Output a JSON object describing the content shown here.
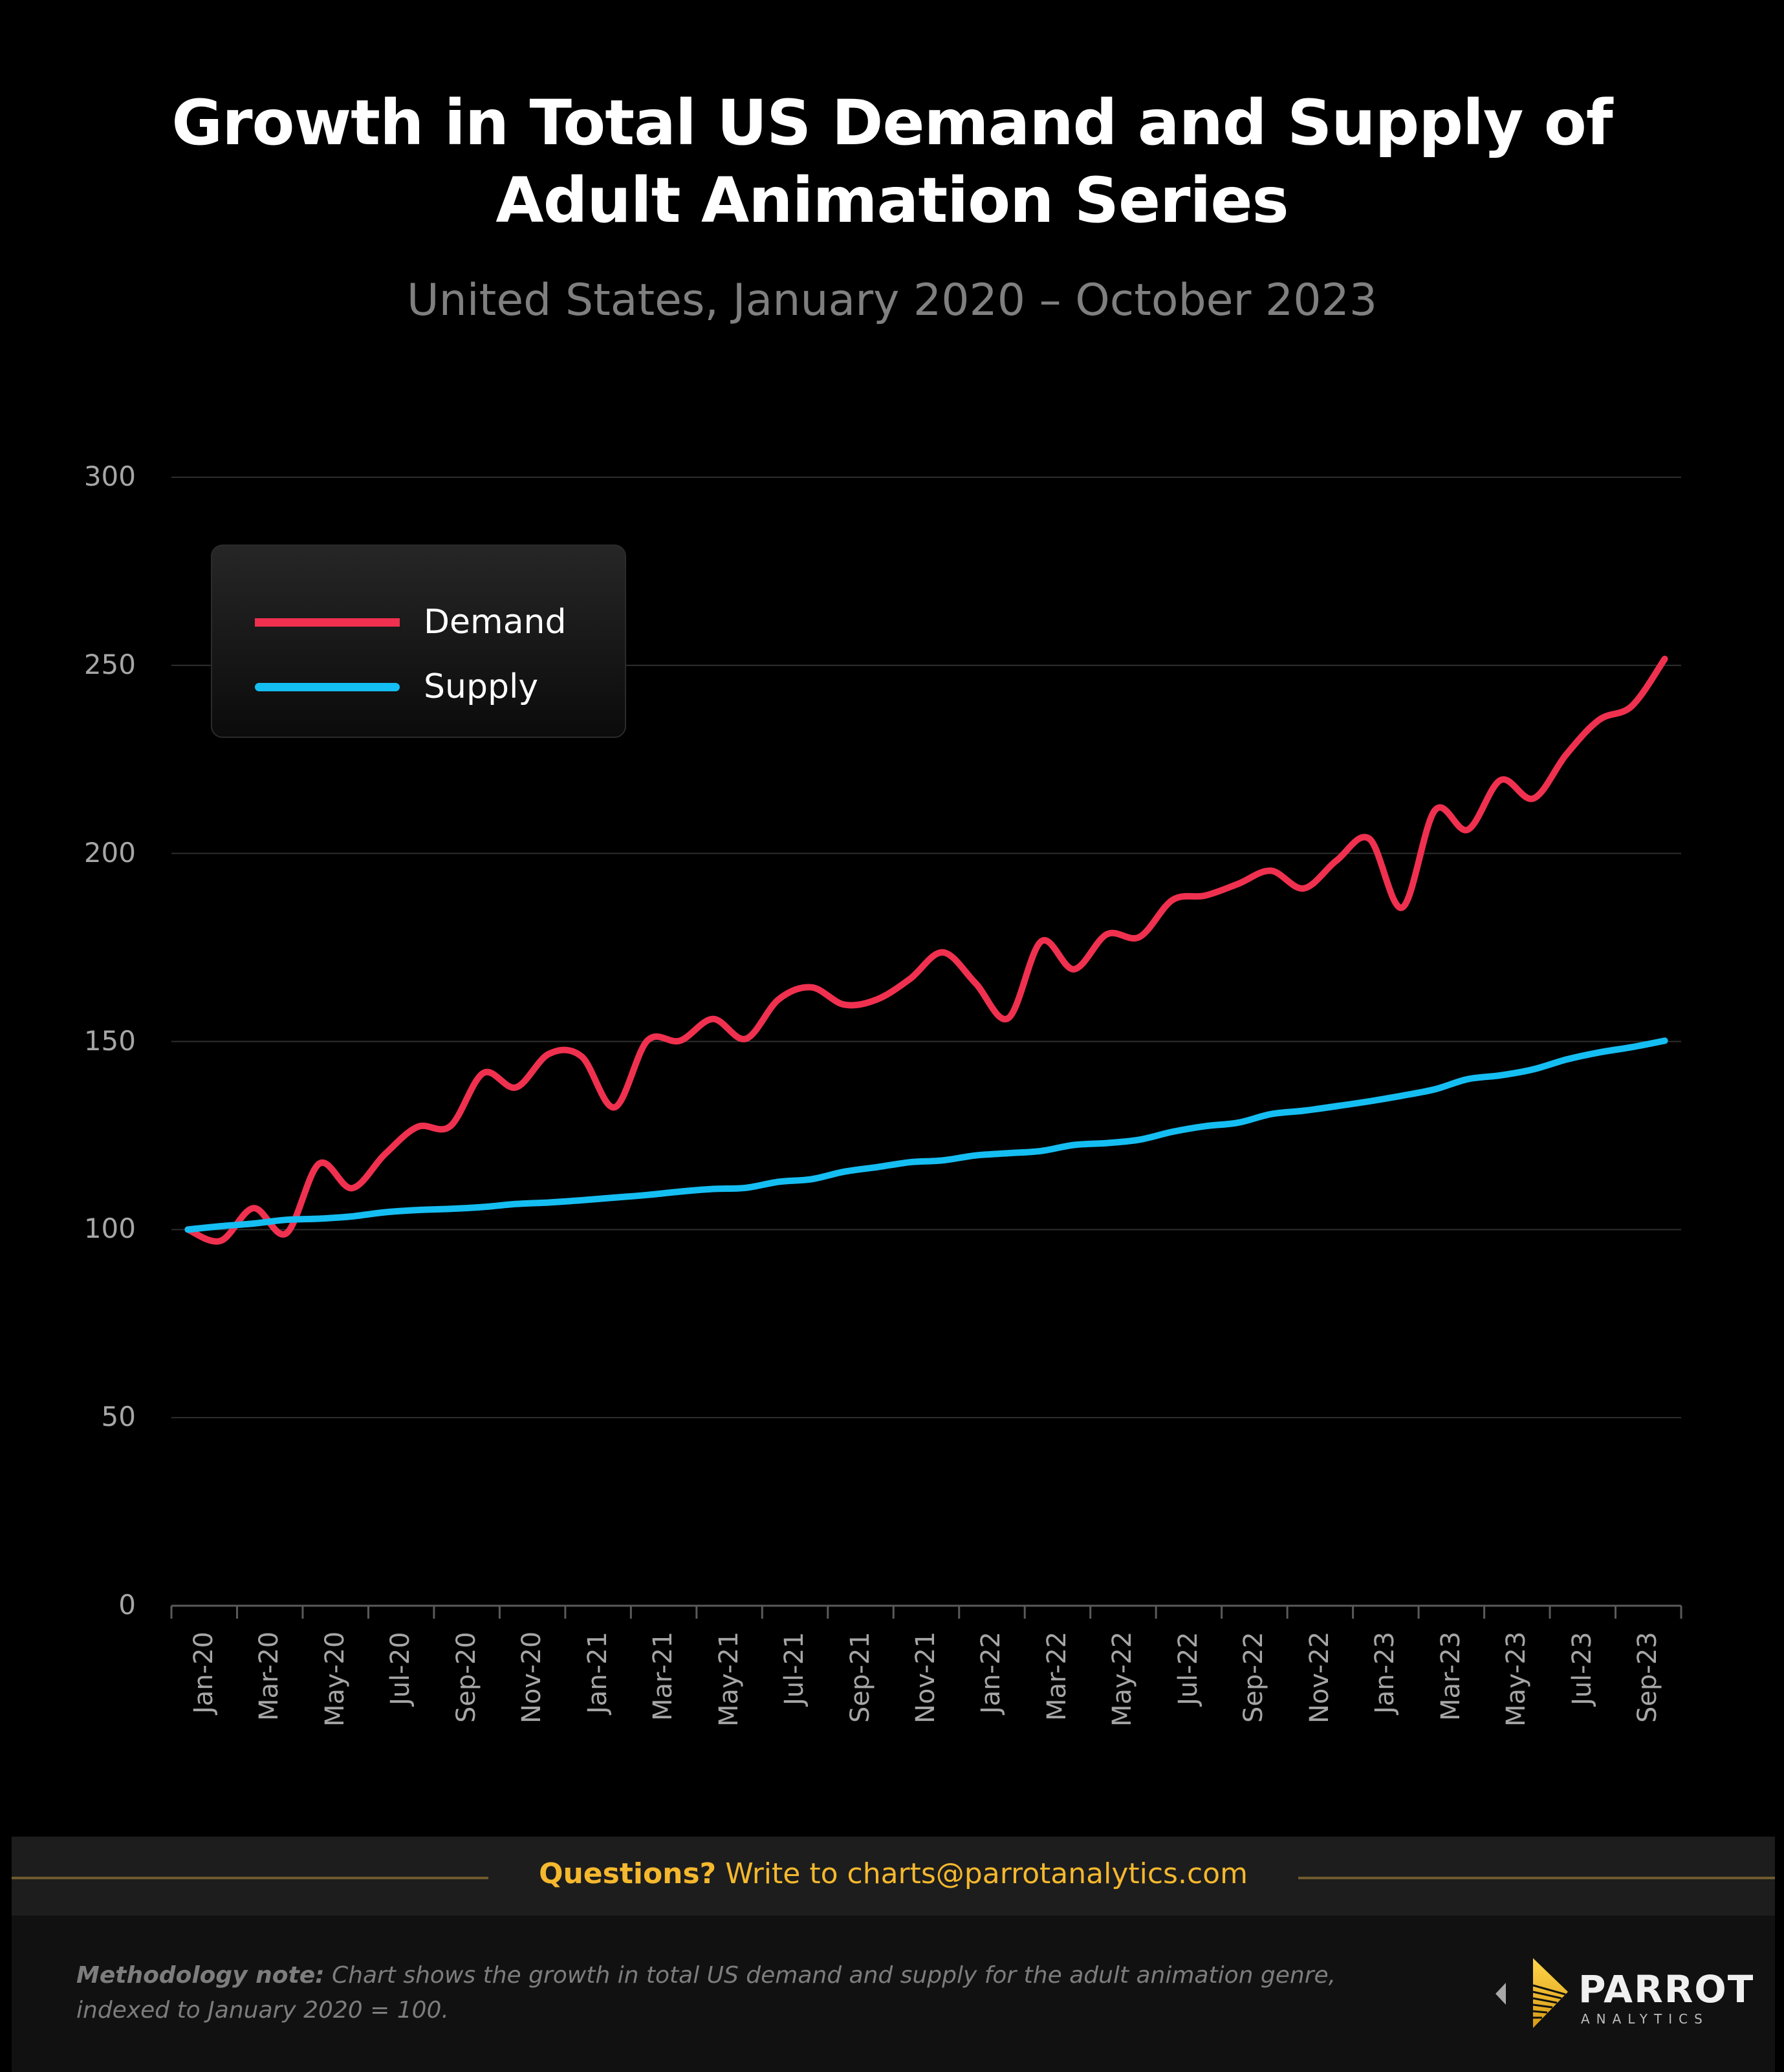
{
  "header": {
    "title_line1": "Growth in Total US Demand and Supply of",
    "title_line2": "Adult Animation Series",
    "subtitle": "United States, January 2020 – October 2023"
  },
  "legend": {
    "items": [
      {
        "label": "Demand",
        "color": "#F0304F"
      },
      {
        "label": "Supply",
        "color": "#15BEF2"
      }
    ]
  },
  "chart_data": {
    "type": "line",
    "title": "Growth in Total US Demand and Supply of Adult Animation Series",
    "subtitle": "United States, January 2020 – October 2023",
    "xlabel": "",
    "ylabel": "",
    "ylim": [
      0,
      300
    ],
    "yticks": [
      0,
      50,
      100,
      150,
      200,
      250,
      300
    ],
    "grid": true,
    "legend_position": "top-left",
    "x_tick_labels": [
      "Jan-20",
      "Mar-20",
      "May-20",
      "Jul-20",
      "Sep-20",
      "Nov-20",
      "Jan-21",
      "Mar-21",
      "May-21",
      "Jul-21",
      "Sep-21",
      "Nov-21",
      "Jan-22",
      "Mar-22",
      "May-22",
      "Jul-22",
      "Sep-22",
      "Nov-22",
      "Jan-23",
      "Mar-23",
      "May-23",
      "Jul-23",
      "Sep-23"
    ],
    "x": [
      "Jan-20",
      "Feb-20",
      "Mar-20",
      "Apr-20",
      "May-20",
      "Jun-20",
      "Jul-20",
      "Aug-20",
      "Sep-20",
      "Oct-20",
      "Nov-20",
      "Dec-20",
      "Jan-21",
      "Feb-21",
      "Mar-21",
      "Apr-21",
      "May-21",
      "Jun-21",
      "Jul-21",
      "Aug-21",
      "Sep-21",
      "Oct-21",
      "Nov-21",
      "Dec-21",
      "Jan-22",
      "Feb-22",
      "Mar-22",
      "Apr-22",
      "May-22",
      "Jun-22",
      "Jul-22",
      "Aug-22",
      "Sep-22",
      "Oct-22",
      "Nov-22",
      "Dec-22",
      "Jan-23",
      "Feb-23",
      "Mar-23",
      "Apr-23",
      "May-23",
      "Jun-23",
      "Jul-23",
      "Aug-23",
      "Sep-23",
      "Oct-23"
    ],
    "series": [
      {
        "name": "Demand",
        "color": "#F0304F",
        "values": [
          100,
          97,
          105.7,
          99,
          117.5,
          111,
          120,
          127.3,
          127.5,
          141.6,
          137.8,
          146.7,
          146,
          132.5,
          150.2,
          150.2,
          156,
          150.7,
          161.2,
          164.4,
          159.8,
          161.2,
          166.6,
          173.7,
          165.5,
          156.2,
          176.6,
          169.2,
          178.5,
          177.8,
          187.6,
          188.8,
          191.9,
          195.4,
          190.7,
          198.1,
          203.9,
          185.6,
          211.5,
          206.3,
          219.5,
          214.6,
          226.3,
          235.5,
          239.2,
          251.7
        ]
      },
      {
        "name": "Supply",
        "color": "#15BEF2",
        "values": [
          100,
          100.9,
          101.6,
          102.6,
          102.9,
          103.5,
          104.6,
          105.2,
          105.5,
          106,
          106.8,
          107.2,
          107.8,
          108.5,
          109.2,
          110.1,
          110.8,
          111.1,
          112.7,
          113.4,
          115.4,
          116.6,
          117.9,
          118.4,
          119.7,
          120.3,
          120.9,
          122.5,
          123,
          123.9,
          126,
          127.5,
          128.4,
          130.7,
          131.6,
          132.8,
          134.1,
          135.6,
          137.3,
          140,
          141,
          142.6,
          145.2,
          147.1,
          148.5,
          150.2
        ]
      }
    ]
  },
  "footer": {
    "questions_bold": "Questions?",
    "questions_text": " Write to charts@parrotanalytics.com",
    "accent_color": "#F5B82E",
    "methodology_bold": "Methodology note:",
    "methodology_text": " Chart shows the growth in total US demand and supply for the adult animation genre, indexed to January 2020 = 100.",
    "logo_name": "PARROT",
    "logo_sub": "ANALYTICS",
    "logo_icon": "parrot-analytics-logo-icon"
  }
}
